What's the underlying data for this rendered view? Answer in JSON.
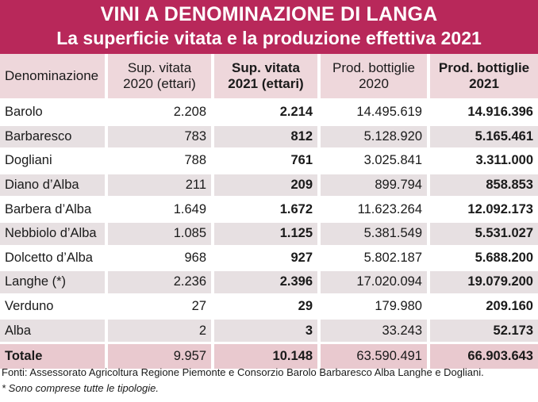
{
  "title": {
    "line1": "VINI A DENOMINAZIONE DI LANGA",
    "line2": "La superficie vitata e la produzione effettiva 2021"
  },
  "table": {
    "headers": [
      [
        "Denominazione"
      ],
      [
        "Sup. vitata",
        "2020 (ettari)"
      ],
      [
        "Sup. vitata",
        "2021 (ettari)"
      ],
      [
        "Prod. bottiglie",
        "2020"
      ],
      [
        "Prod. bottiglie",
        "2021"
      ]
    ],
    "rows": [
      [
        "Barolo",
        "2.208",
        "2.214",
        "14.495.619",
        "14.916.396"
      ],
      [
        "Barbaresco",
        "783",
        "812",
        "5.128.920",
        "5.165.461"
      ],
      [
        "Dogliani",
        "788",
        "761",
        "3.025.841",
        "3.311.000"
      ],
      [
        "Diano d’Alba",
        "211",
        "209",
        "899.794",
        "858.853"
      ],
      [
        "Barbera d’Alba",
        "1.649",
        "1.672",
        "11.623.264",
        "12.092.173"
      ],
      [
        "Nebbiolo d’Alba",
        "1.085",
        "1.125",
        "5.381.549",
        "5.531.027"
      ],
      [
        "Dolcetto d’Alba",
        "968",
        "927",
        "5.802.187",
        "5.688.200"
      ],
      [
        "Langhe (*)",
        "2.236",
        "2.396",
        "17.020.094",
        "19.079.200"
      ],
      [
        "Verduno",
        "27",
        "29",
        "179.980",
        "209.160"
      ],
      [
        "Alba",
        "2",
        "3",
        "33.243",
        "52.173"
      ]
    ],
    "total": [
      "Totale",
      "9.957",
      "10.148",
      "63.590.491",
      "66.903.643"
    ]
  },
  "footer": {
    "sources": "Fonti: Assessorato Agricoltura Regione Piemonte e Consorzio Barolo Barbaresco Alba Langhe e Dogliani.",
    "note": "* Sono comprese tutte le tipologie."
  }
}
